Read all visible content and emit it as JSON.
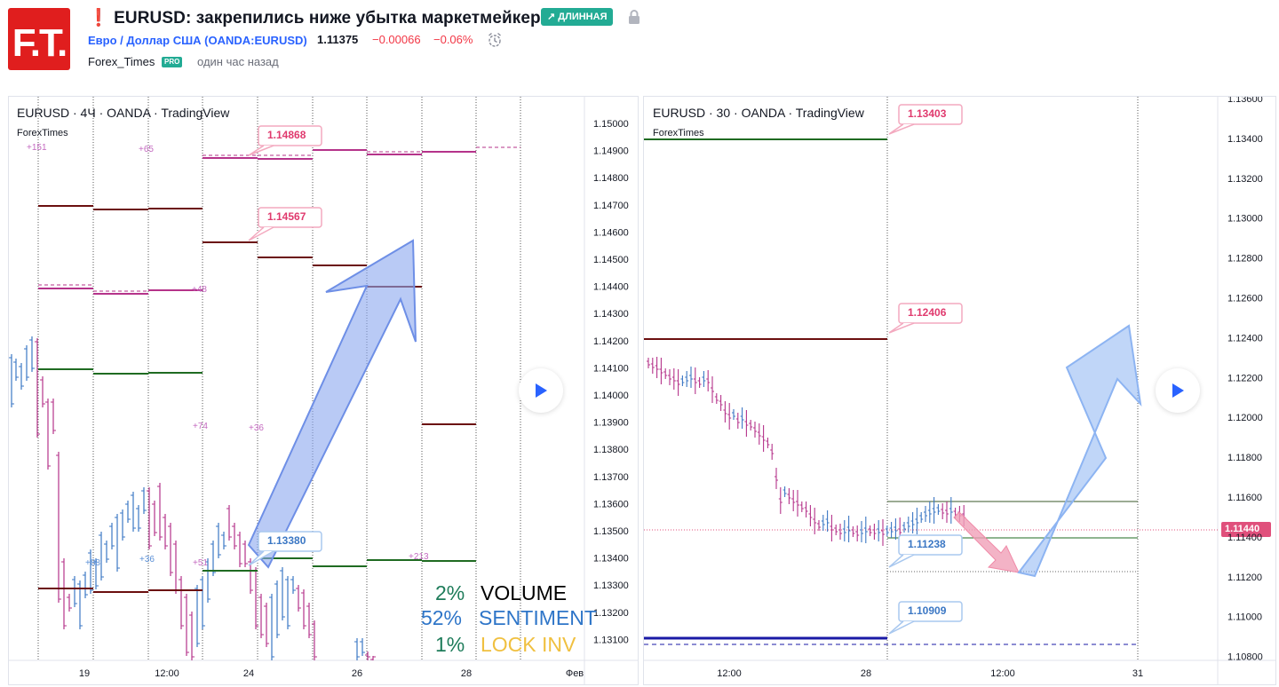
{
  "header": {
    "logo_text": "F.T.",
    "title": "❗ EURUSD: закрепились ниже убытка маркетмейкера.",
    "direction_badge": "↗ ДЛИННАЯ",
    "symbol_link": "Евро / Доллар США (OANDA:EURUSD)",
    "price": "1.11375",
    "change": "−0.00066",
    "change_percent": "−0.06%",
    "author": "Forex_Times",
    "author_badge": "PRO",
    "published": "один час назад",
    "icons": [
      "lock-icon",
      "alarm-icon"
    ]
  },
  "chart_left": {
    "title": "EURUSD · 4Ч · OANDA · TradingView",
    "watermark": "ForexTimes",
    "price_axis": [
      "1.15000",
      "1.14900",
      "1.14800",
      "1.14700",
      "1.14600",
      "1.14500",
      "1.14400",
      "1.14300",
      "1.14200",
      "1.14100",
      "1.14000",
      "1.13900",
      "1.13800",
      "1.13700",
      "1.13600",
      "1.13500",
      "1.13400",
      "1.13300",
      "1.13200",
      "1.13100"
    ],
    "time_axis": [
      "19",
      "12:00",
      "24",
      "26",
      "28",
      "Фев"
    ],
    "price_labels": [
      "1.14868",
      "1.14567",
      "1.13380"
    ],
    "counts": [
      "+151",
      "+65",
      "+48",
      "+74",
      "+36",
      "+88",
      "+36",
      "+51",
      "+213"
    ],
    "stats": [
      {
        "value": "2%",
        "label": "VOLUME",
        "value_color": "#1e7c5a",
        "label_color": "#000000"
      },
      {
        "value": "52%",
        "label": "SENTIMENT",
        "value_color": "#2e75c8",
        "label_color": "#2e75c8"
      },
      {
        "value": "1%",
        "label": "LOCK INV",
        "value_color": "#1e7c5a",
        "label_color": "#f0c040"
      }
    ]
  },
  "chart_right": {
    "title": "EURUSD · 30 · OANDA · TradingView",
    "watermark": "ForexTimes",
    "price_axis": [
      "1.13600",
      "1.13400",
      "1.13200",
      "1.13000",
      "1.12800",
      "1.12600",
      "1.12400",
      "1.12200",
      "1.12000",
      "1.11800",
      "1.11600",
      "1.11400",
      "1.11200",
      "1.11000",
      "1.10800"
    ],
    "time_axis": [
      "12:00",
      "28",
      "12:00",
      "31"
    ],
    "price_labels": [
      "1.13403",
      "1.12406",
      "1.11238",
      "1.10909"
    ],
    "current_price": "1.11440"
  },
  "colors": {
    "brand_red": "#e01e1e",
    "badge_green": "#22ab94",
    "link_blue": "#2962ff",
    "down_red": "#f23645",
    "magenta_line": "#b5338a",
    "dark_red_line": "#6b0f0f",
    "green_line": "#1f6b22",
    "navy_line": "#1a1aa6",
    "arrow_blue": "#8aa6ef",
    "arrow_pink": "#f0a0b8",
    "price_label_pink": "#e03a6e",
    "price_label_blue": "#3b77c4"
  }
}
